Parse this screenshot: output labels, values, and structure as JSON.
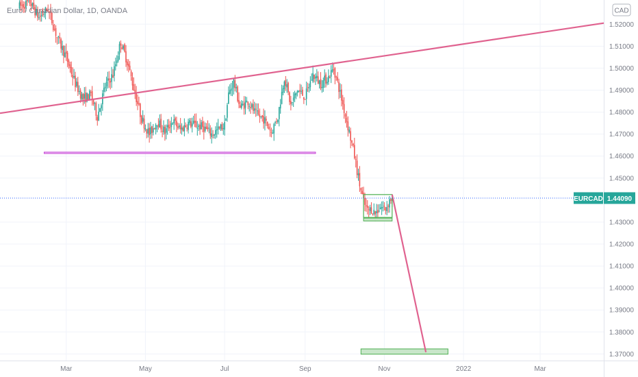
{
  "header": {
    "title": "Euro / Canadian Dollar, 1D, OANDA",
    "currency_badge": "CAD"
  },
  "price_tag": {
    "symbol": "EURCAD",
    "value": "1.44090",
    "price": 1.4409
  },
  "colors": {
    "up": "#26a69a",
    "down": "#ef5350",
    "trendline": "#e0628f",
    "support": "#c43fd6",
    "box": "#4caf50",
    "box_fill": "#c8e6c9",
    "grid": "#f0f3fa",
    "price_tag": "#26a69a"
  },
  "chart_data": {
    "type": "candlestick",
    "title": "Euro / Canadian Dollar, 1D, OANDA",
    "yticks": [
      "1.52000",
      "1.51000",
      "1.50000",
      "1.49000",
      "1.48000",
      "1.47000",
      "1.46000",
      "1.45000",
      "1.43000",
      "1.42000",
      "1.41000",
      "1.40000",
      "1.39000",
      "1.38000",
      "1.37000"
    ],
    "ytick_values": [
      1.52,
      1.51,
      1.5,
      1.49,
      1.48,
      1.47,
      1.46,
      1.45,
      1.43,
      1.42,
      1.41,
      1.4,
      1.39,
      1.38,
      1.37
    ],
    "xticks": [
      {
        "label": "Mar",
        "day": 36
      },
      {
        "label": "May",
        "day": 97
      },
      {
        "label": "Jul",
        "day": 158
      },
      {
        "label": "Sep",
        "day": 220
      },
      {
        "label": "Nov",
        "day": 281
      },
      {
        "label": "2022",
        "day": 342
      },
      {
        "label": "Mar",
        "day": 401
      }
    ],
    "y_range": [
      1.367,
      1.531
    ],
    "x_range": [
      -15,
      450
    ],
    "price_path": [
      [
        0,
        1.528
      ],
      [
        8,
        1.53
      ],
      [
        15,
        1.523
      ],
      [
        22,
        1.527
      ],
      [
        29,
        1.514
      ],
      [
        36,
        1.505
      ],
      [
        43,
        1.493
      ],
      [
        49,
        1.486
      ],
      [
        55,
        1.488
      ],
      [
        60,
        1.478
      ],
      [
        66,
        1.492
      ],
      [
        72,
        1.497
      ],
      [
        78,
        1.512
      ],
      [
        83,
        1.503
      ],
      [
        88,
        1.491
      ],
      [
        94,
        1.477
      ],
      [
        100,
        1.47
      ],
      [
        106,
        1.476
      ],
      [
        112,
        1.471
      ],
      [
        118,
        1.476
      ],
      [
        124,
        1.472
      ],
      [
        130,
        1.475
      ],
      [
        136,
        1.474
      ],
      [
        142,
        1.473
      ],
      [
        148,
        1.47
      ],
      [
        153,
        1.472
      ],
      [
        158,
        1.474
      ],
      [
        161,
        1.488
      ],
      [
        165,
        1.494
      ],
      [
        170,
        1.482
      ],
      [
        176,
        1.485
      ],
      [
        182,
        1.479
      ],
      [
        188,
        1.477
      ],
      [
        194,
        1.471
      ],
      [
        199,
        1.478
      ],
      [
        204,
        1.496
      ],
      [
        209,
        1.483
      ],
      [
        214,
        1.49
      ],
      [
        220,
        1.487
      ],
      [
        226,
        1.497
      ],
      [
        232,
        1.493
      ],
      [
        238,
        1.496
      ],
      [
        242,
        1.5
      ],
      [
        246,
        1.491
      ],
      [
        250,
        1.481
      ],
      [
        254,
        1.471
      ],
      [
        258,
        1.46
      ],
      [
        262,
        1.447
      ],
      [
        265,
        1.439
      ],
      [
        268,
        1.435
      ],
      [
        271,
        1.436
      ],
      [
        274,
        1.434
      ],
      [
        278,
        1.437
      ],
      [
        282,
        1.436
      ],
      [
        285,
        1.44
      ],
      [
        287,
        1.441
      ]
    ],
    "annotations": {
      "trendline": {
        "p1": [
          -15,
          1.4795
        ],
        "p2": [
          450,
          1.5205
        ]
      },
      "support_line": {
        "day_start": 19,
        "day_end": 228,
        "price_top": 1.4618,
        "price_bottom": 1.4612
      },
      "range_box": {
        "day_start": 265,
        "day_end": 287,
        "price_top": 1.4425,
        "price_bottom": 1.4321
      },
      "range_box_bottom_line": {
        "price_top": 1.4318,
        "price_bottom": 1.4305
      },
      "projection": {
        "p1": [
          287,
          1.4425
        ],
        "p2": [
          313,
          1.3708
        ]
      },
      "target_box": {
        "day_start": 263,
        "day_end": 330,
        "price_top": 1.3723,
        "price_bottom": 1.3699
      }
    }
  }
}
